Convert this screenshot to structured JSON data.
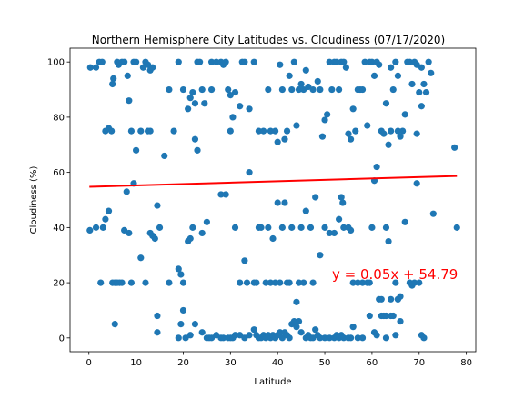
{
  "chart_data": {
    "type": "scatter",
    "title": "Northern Hemisphere City Latitudes vs. Cloudiness (07/17/2020)",
    "xlabel": "Latitude",
    "ylabel": "Cloudiness (%)",
    "xlim": [
      -4,
      82
    ],
    "ylim": [
      -5,
      105
    ],
    "xticks": [
      0,
      10,
      20,
      30,
      40,
      50,
      60,
      70,
      80
    ],
    "yticks": [
      0,
      20,
      40,
      60,
      80,
      100
    ],
    "grid": false,
    "colors": {
      "points": "#1f77b4",
      "regression": "#ff0000",
      "equation": "#ff0000"
    },
    "regression": {
      "slope": 0.05,
      "intercept": 54.79,
      "x_range": [
        0.1,
        78
      ],
      "equation": "y = 0.05x + 54.79"
    },
    "points": [
      [
        0.3,
        98
      ],
      [
        1.5,
        98
      ],
      [
        2.2,
        100
      ],
      [
        2.8,
        100
      ],
      [
        3.5,
        75
      ],
      [
        4.2,
        76
      ],
      [
        4.8,
        75
      ],
      [
        5.2,
        94
      ],
      [
        5.0,
        92
      ],
      [
        6.0,
        100
      ],
      [
        6.3,
        99
      ],
      [
        7.0,
        100
      ],
      [
        7.5,
        100
      ],
      [
        8.2,
        95
      ],
      [
        8.5,
        86
      ],
      [
        9.0,
        75
      ],
      [
        9.5,
        100
      ],
      [
        10.0,
        100
      ],
      [
        11.5,
        98
      ],
      [
        12.0,
        100
      ],
      [
        12.5,
        99
      ],
      [
        13.0,
        97
      ],
      [
        13.5,
        98
      ],
      [
        12.5,
        75
      ],
      [
        13.0,
        75
      ],
      [
        11.0,
        75
      ],
      [
        17.0,
        90
      ],
      [
        19.0,
        100
      ],
      [
        20.0,
        90
      ],
      [
        21.0,
        83
      ],
      [
        21.5,
        87
      ],
      [
        22.0,
        89
      ],
      [
        22.5,
        85
      ],
      [
        23.0,
        100
      ],
      [
        24.0,
        90
      ],
      [
        24.5,
        85
      ],
      [
        26.0,
        100
      ],
      [
        27.0,
        100
      ],
      [
        28.0,
        100
      ],
      [
        28.5,
        99
      ],
      [
        29.0,
        100
      ],
      [
        29.5,
        90
      ],
      [
        30.0,
        88
      ],
      [
        30.5,
        80
      ],
      [
        31.0,
        89
      ],
      [
        32.0,
        84
      ],
      [
        32.5,
        100
      ],
      [
        33.0,
        100
      ],
      [
        34.0,
        83
      ],
      [
        35.0,
        100
      ],
      [
        36.0,
        75
      ],
      [
        37.0,
        75
      ],
      [
        38.0,
        90
      ],
      [
        38.5,
        75
      ],
      [
        39.5,
        75
      ],
      [
        40.0,
        71
      ],
      [
        40.5,
        99
      ],
      [
        41.0,
        90
      ],
      [
        41.5,
        72
      ],
      [
        42.0,
        75
      ],
      [
        42.5,
        95
      ],
      [
        43.0,
        90
      ],
      [
        43.5,
        100
      ],
      [
        44.0,
        77
      ],
      [
        44.5,
        90
      ],
      [
        45.0,
        92
      ],
      [
        45.5,
        90
      ],
      [
        46.0,
        97
      ],
      [
        46.5,
        91
      ],
      [
        47.5,
        90
      ],
      [
        48.5,
        93
      ],
      [
        49.0,
        90
      ],
      [
        49.5,
        73
      ],
      [
        50.0,
        79
      ],
      [
        50.5,
        81
      ],
      [
        51.0,
        100
      ],
      [
        51.5,
        90
      ],
      [
        52.0,
        100
      ],
      [
        52.5,
        100
      ],
      [
        53.0,
        90
      ],
      [
        53.5,
        100
      ],
      [
        54.0,
        100
      ],
      [
        54.5,
        98
      ],
      [
        55.0,
        74
      ],
      [
        55.5,
        72
      ],
      [
        56.0,
        83
      ],
      [
        56.5,
        75
      ],
      [
        57.0,
        90
      ],
      [
        57.5,
        90
      ],
      [
        58.0,
        90
      ],
      [
        58.5,
        100
      ],
      [
        59.0,
        77
      ],
      [
        59.5,
        100
      ],
      [
        60.0,
        100
      ],
      [
        60.5,
        95
      ],
      [
        61.0,
        100
      ],
      [
        61.5,
        99
      ],
      [
        62.0,
        75
      ],
      [
        62.5,
        74
      ],
      [
        63.0,
        85
      ],
      [
        63.5,
        70
      ],
      [
        64.0,
        75
      ],
      [
        64.5,
        90
      ],
      [
        65.0,
        100
      ],
      [
        65.5,
        75
      ],
      [
        66.0,
        73
      ],
      [
        66.5,
        75
      ],
      [
        67.0,
        81
      ],
      [
        68.0,
        100
      ],
      [
        68.5,
        92
      ],
      [
        69.0,
        100
      ],
      [
        69.5,
        74
      ],
      [
        70.0,
        89
      ],
      [
        70.5,
        84
      ],
      [
        71.0,
        92
      ],
      [
        71.5,
        89
      ],
      [
        72.0,
        100
      ],
      [
        72.5,
        96
      ],
      [
        77.5,
        69
      ],
      [
        64.0,
        98
      ],
      [
        65.5,
        95
      ],
      [
        67.5,
        100
      ],
      [
        69.5,
        99
      ],
      [
        70.5,
        98
      ],
      [
        0.2,
        39
      ],
      [
        1.5,
        40
      ],
      [
        2.5,
        20
      ],
      [
        3.0,
        40
      ],
      [
        3.5,
        43
      ],
      [
        4.2,
        46
      ],
      [
        5.0,
        20
      ],
      [
        5.5,
        20
      ],
      [
        6.0,
        20
      ],
      [
        6.5,
        20
      ],
      [
        7.0,
        20
      ],
      [
        7.5,
        39
      ],
      [
        8.0,
        53
      ],
      [
        8.5,
        38
      ],
      [
        9.0,
        20
      ],
      [
        9.5,
        56
      ],
      [
        10.0,
        68
      ],
      [
        11.0,
        29
      ],
      [
        12.0,
        20
      ],
      [
        13.0,
        38
      ],
      [
        14.0,
        36
      ],
      [
        14.5,
        48
      ],
      [
        15.0,
        40
      ],
      [
        13.5,
        37
      ],
      [
        16.0,
        66
      ],
      [
        17.0,
        20
      ],
      [
        18.0,
        75
      ],
      [
        19.0,
        25
      ],
      [
        19.5,
        23
      ],
      [
        20.0,
        20
      ],
      [
        21.0,
        35
      ],
      [
        21.5,
        36
      ],
      [
        22.0,
        40
      ],
      [
        22.5,
        72
      ],
      [
        23.0,
        68
      ],
      [
        23.5,
        100
      ],
      [
        24.0,
        38
      ],
      [
        25.0,
        42
      ],
      [
        26.0,
        90
      ],
      [
        28.0,
        52
      ],
      [
        29.0,
        52
      ],
      [
        30.0,
        75
      ],
      [
        31.0,
        40
      ],
      [
        32.0,
        20
      ],
      [
        33.0,
        28
      ],
      [
        33.5,
        20
      ],
      [
        34.0,
        60
      ],
      [
        35.0,
        20
      ],
      [
        35.5,
        20
      ],
      [
        36.0,
        40
      ],
      [
        36.5,
        40
      ],
      [
        37.5,
        20
      ],
      [
        38.0,
        40
      ],
      [
        38.5,
        20
      ],
      [
        39.0,
        36
      ],
      [
        39.5,
        20
      ],
      [
        40.0,
        49
      ],
      [
        40.5,
        20
      ],
      [
        41.0,
        40
      ],
      [
        41.5,
        49
      ],
      [
        42.0,
        20
      ],
      [
        42.5,
        20
      ],
      [
        43.0,
        40
      ],
      [
        44.0,
        13
      ],
      [
        44.5,
        20
      ],
      [
        45.0,
        40
      ],
      [
        45.5,
        20
      ],
      [
        46.0,
        46
      ],
      [
        47.0,
        40
      ],
      [
        47.5,
        20
      ],
      [
        48.0,
        51
      ],
      [
        49.0,
        30
      ],
      [
        50.0,
        40
      ],
      [
        51.0,
        38
      ],
      [
        52.0,
        38
      ],
      [
        53.0,
        43
      ],
      [
        53.5,
        51
      ],
      [
        53.8,
        49
      ],
      [
        54.0,
        40
      ],
      [
        55.0,
        40
      ],
      [
        55.5,
        39
      ],
      [
        56.0,
        20
      ],
      [
        57.0,
        20
      ],
      [
        58.0,
        20
      ],
      [
        59.0,
        20
      ],
      [
        59.5,
        20
      ],
      [
        60.0,
        40
      ],
      [
        60.5,
        57
      ],
      [
        61.0,
        62
      ],
      [
        61.5,
        14
      ],
      [
        62.0,
        14
      ],
      [
        63.0,
        40
      ],
      [
        63.5,
        35
      ],
      [
        64.0,
        14
      ],
      [
        65.0,
        20
      ],
      [
        65.5,
        14
      ],
      [
        66.0,
        15
      ],
      [
        67.0,
        42
      ],
      [
        68.0,
        20
      ],
      [
        68.5,
        19
      ],
      [
        69.0,
        20
      ],
      [
        69.5,
        56
      ],
      [
        70.0,
        20
      ],
      [
        73.0,
        45
      ],
      [
        78.0,
        40
      ],
      [
        65.5,
        14
      ],
      [
        63.0,
        8
      ],
      [
        64.5,
        8
      ],
      [
        5.5,
        5
      ],
      [
        14.5,
        8
      ],
      [
        14.5,
        2
      ],
      [
        19.0,
        0
      ],
      [
        19.5,
        5
      ],
      [
        20.0,
        10
      ],
      [
        20.5,
        0
      ],
      [
        21.5,
        1
      ],
      [
        22.5,
        5
      ],
      [
        24.0,
        2
      ],
      [
        25.0,
        0
      ],
      [
        25.5,
        0
      ],
      [
        26.0,
        0
      ],
      [
        27.0,
        1
      ],
      [
        28.0,
        0
      ],
      [
        28.5,
        0
      ],
      [
        29.5,
        0
      ],
      [
        30.0,
        0
      ],
      [
        30.5,
        0
      ],
      [
        31.0,
        1
      ],
      [
        32.0,
        1
      ],
      [
        33.0,
        0
      ],
      [
        34.0,
        1
      ],
      [
        35.0,
        3
      ],
      [
        35.5,
        1
      ],
      [
        36.0,
        0
      ],
      [
        36.5,
        0
      ],
      [
        37.0,
        1
      ],
      [
        37.5,
        0
      ],
      [
        38.0,
        1
      ],
      [
        38.5,
        0
      ],
      [
        39.0,
        1
      ],
      [
        39.5,
        0
      ],
      [
        40.0,
        1
      ],
      [
        40.5,
        2
      ],
      [
        41.0,
        0
      ],
      [
        41.5,
        2
      ],
      [
        42.0,
        1
      ],
      [
        42.5,
        0
      ],
      [
        43.0,
        5
      ],
      [
        43.5,
        6
      ],
      [
        44.0,
        4
      ],
      [
        44.5,
        6
      ],
      [
        45.0,
        2
      ],
      [
        46.0,
        0
      ],
      [
        46.5,
        1
      ],
      [
        47.0,
        0
      ],
      [
        47.5,
        0
      ],
      [
        48.0,
        3
      ],
      [
        48.5,
        1
      ],
      [
        49.0,
        0
      ],
      [
        50.0,
        0
      ],
      [
        51.0,
        0
      ],
      [
        52.0,
        0
      ],
      [
        52.5,
        1
      ],
      [
        53.0,
        0
      ],
      [
        53.5,
        1
      ],
      [
        54.0,
        0
      ],
      [
        55.0,
        0
      ],
      [
        55.5,
        0
      ],
      [
        56.0,
        4
      ],
      [
        57.0,
        0
      ],
      [
        58.0,
        0
      ],
      [
        59.5,
        8
      ],
      [
        60.5,
        2
      ],
      [
        61.0,
        1
      ],
      [
        62.0,
        8
      ],
      [
        62.5,
        8
      ],
      [
        63.0,
        0
      ],
      [
        64.0,
        8
      ],
      [
        65.0,
        1
      ],
      [
        66.0,
        6
      ],
      [
        70.5,
        1
      ],
      [
        71.0,
        0
      ]
    ]
  }
}
